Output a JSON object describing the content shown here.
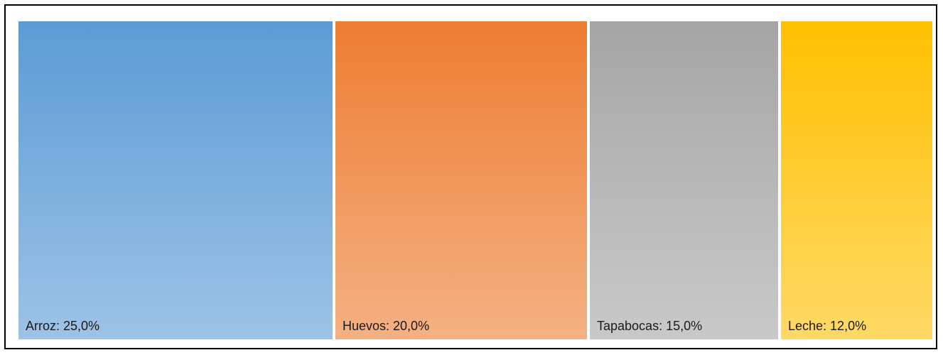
{
  "chart_data": {
    "type": "treemap",
    "title": "",
    "items": [
      {
        "label": "Arroz",
        "value": 25.0,
        "display": "Arroz: 25,0%",
        "color_top": "#5b9bd5",
        "color_bottom": "#9dc3e6"
      },
      {
        "label": "Huevos",
        "value": 20.0,
        "display": "Huevos: 20,0%",
        "color_top": "#ed7d31",
        "color_bottom": "#f4b183"
      },
      {
        "label": "Tapabocas",
        "value": 15.0,
        "display": "Tapabocas: 15,0%",
        "color_top": "#a5a5a5",
        "color_bottom": "#c9c9c9"
      },
      {
        "label": "Leche",
        "value": 12.0,
        "display": "Leche: 12,0%",
        "color_top": "#ffc000",
        "color_bottom": "#ffd966"
      }
    ]
  }
}
